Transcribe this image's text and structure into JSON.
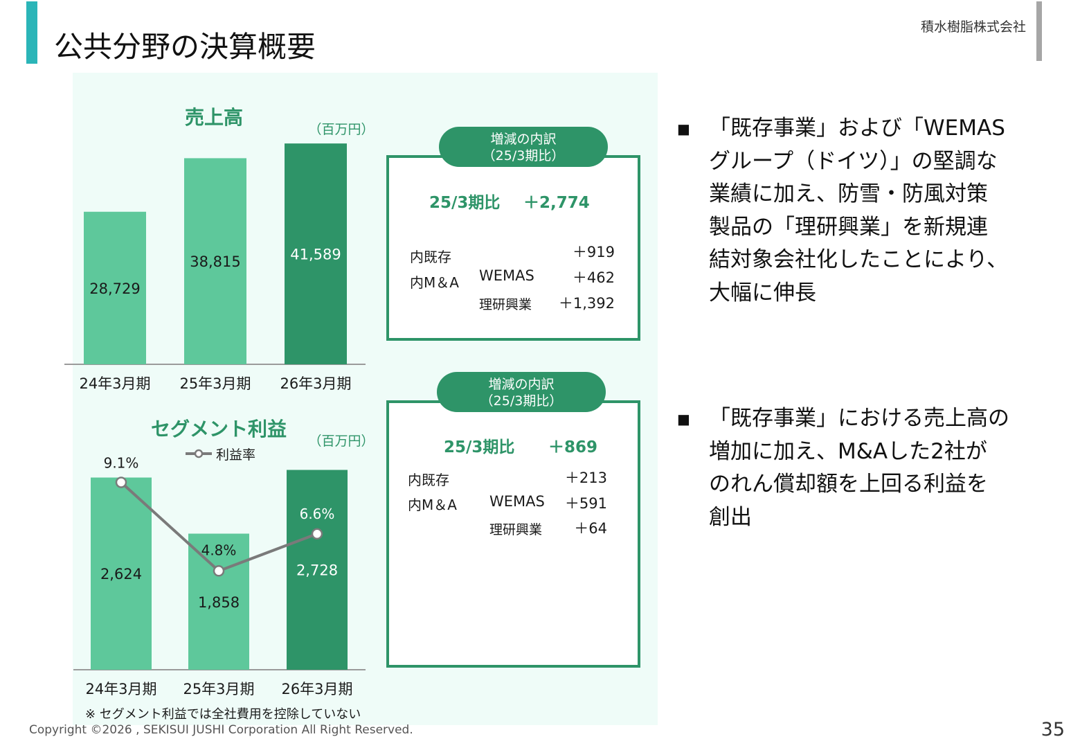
{
  "header": {
    "title": "公共分野の決算概要",
    "company": "積水樹脂株式会社"
  },
  "sales_chart": {
    "title": "売上高",
    "unit": "（百万円）"
  },
  "profit_chart": {
    "title": "セグメント利益",
    "unit": "（百万円）",
    "legend": "利益率",
    "note": "※ セグメント利益では全社費用を控除していない"
  },
  "chart_data": [
    {
      "type": "bar",
      "title": "売上高",
      "unit": "（百万円）",
      "categories": [
        "24年3月期",
        "25年3月期",
        "26年3月期"
      ],
      "values": [
        28729,
        38815,
        41589
      ],
      "value_labels": [
        "28,729",
        "38,815",
        "41,589"
      ],
      "highlight": "26年3月期",
      "ylim": [
        0,
        45000
      ],
      "grid": false
    },
    {
      "type": "bar",
      "title": "セグメント利益",
      "unit": "（百万円）",
      "categories": [
        "24年3月期",
        "25年3月期",
        "26年3月期"
      ],
      "values": [
        2624,
        1858,
        2728
      ],
      "value_labels": [
        "2,624",
        "1,858",
        "2,728"
      ],
      "highlight": "26年3月期",
      "ylim": [
        0,
        3300
      ],
      "grid": false,
      "line": {
        "name": "利益率",
        "values": [
          9.1,
          4.8,
          6.6
        ],
        "value_labels": [
          "9.1%",
          "4.8%",
          "6.6%"
        ],
        "ylim": [
          0,
          11
        ]
      }
    }
  ],
  "sales_breakdown": {
    "header_line1": "増減の内訳",
    "header_line2": "（25/3期比）",
    "total_label": "25/3期比",
    "total_value": "＋2,774",
    "existing_label": "内既存",
    "existing_value": "＋919",
    "ma_label": "内M＆A",
    "wemas_label": "WEMAS",
    "wemas_value": "＋462",
    "riken_label": "理研興業",
    "riken_value": "＋1,392"
  },
  "profit_breakdown": {
    "header_line1": "増減の内訳",
    "header_line2": "（25/3期比）",
    "total_label": "25/3期比",
    "total_value": "＋869",
    "existing_label": "内既存",
    "existing_value": "＋213",
    "ma_label": "内M＆A",
    "wemas_label": "WEMAS",
    "wemas_value": "＋591",
    "riken_label": "理研興業",
    "riken_value": "＋64"
  },
  "commentary": {
    "bullet_symbol": "■",
    "sales_lines": [
      "「既存事業」および「WEMAS",
      "グループ（ドイツ）」の堅調な",
      "業績に加え、防雪・防風対策",
      "製品の「理研興業」を新規連",
      "結対象会社化したことにより、",
      "大幅に伸長"
    ],
    "profit_lines": [
      "「既存事業」における売上高の",
      "増加に加え、M&Aした2社が",
      "のれん償却額を上回る利益を",
      "創出"
    ]
  },
  "footer": {
    "copyright": "Copyright ©2026 , SEKISUI JUSHI Corporation  All Right Reserved.",
    "page": "35"
  },
  "colors": {
    "bar_light": "#5ec89b",
    "bar_dark": "#2e9468",
    "panel_bg": "#effcf8",
    "accent_teal": "#2bb5b8",
    "line": "#7a7a7a"
  }
}
